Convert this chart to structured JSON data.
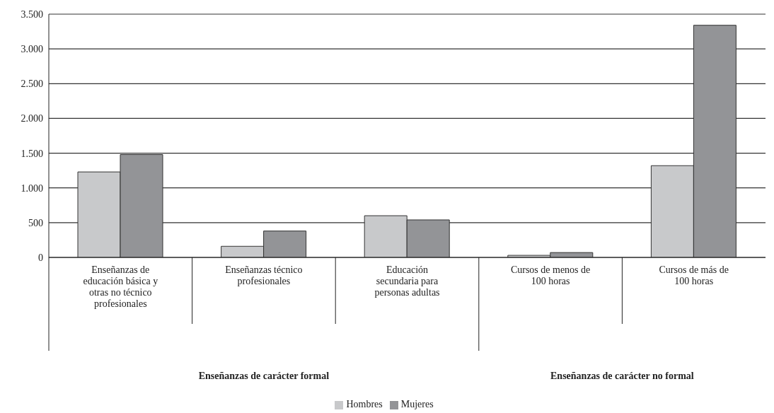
{
  "chart_data": {
    "type": "bar",
    "categories": [
      "Enseñanzas de educación básica y otras no técnico profesionales",
      "Enseñanzas técnico profesionales",
      "Educación secundaria para personas adultas",
      "Cursos de menos de 100 horas",
      "Cursos de más de 100 horas"
    ],
    "series": [
      {
        "name": "Hombres",
        "color": "#c8c9cb",
        "values": [
          1230,
          160,
          600,
          30,
          1320
        ]
      },
      {
        "name": "Mujeres",
        "color": "#939497",
        "values": [
          1480,
          380,
          540,
          70,
          3340
        ]
      }
    ],
    "annotations": [
      "Enseñanzas de carácter formal",
      "Enseñanzas de carácter no formal"
    ],
    "ylim": [
      0,
      3500
    ],
    "yticks": [
      0,
      500,
      {
        "value": 1000,
        "label": "1.000"
      },
      {
        "value": 1500,
        "label": "1.500"
      },
      {
        "value": 2000,
        "label": "2.000"
      },
      {
        "value": 2500,
        "label": "2.500"
      },
      {
        "value": 3000,
        "label": "3.000"
      },
      {
        "value": 3500,
        "label": "3.500"
      }
    ],
    "grid": "y",
    "legend": "bottom"
  }
}
